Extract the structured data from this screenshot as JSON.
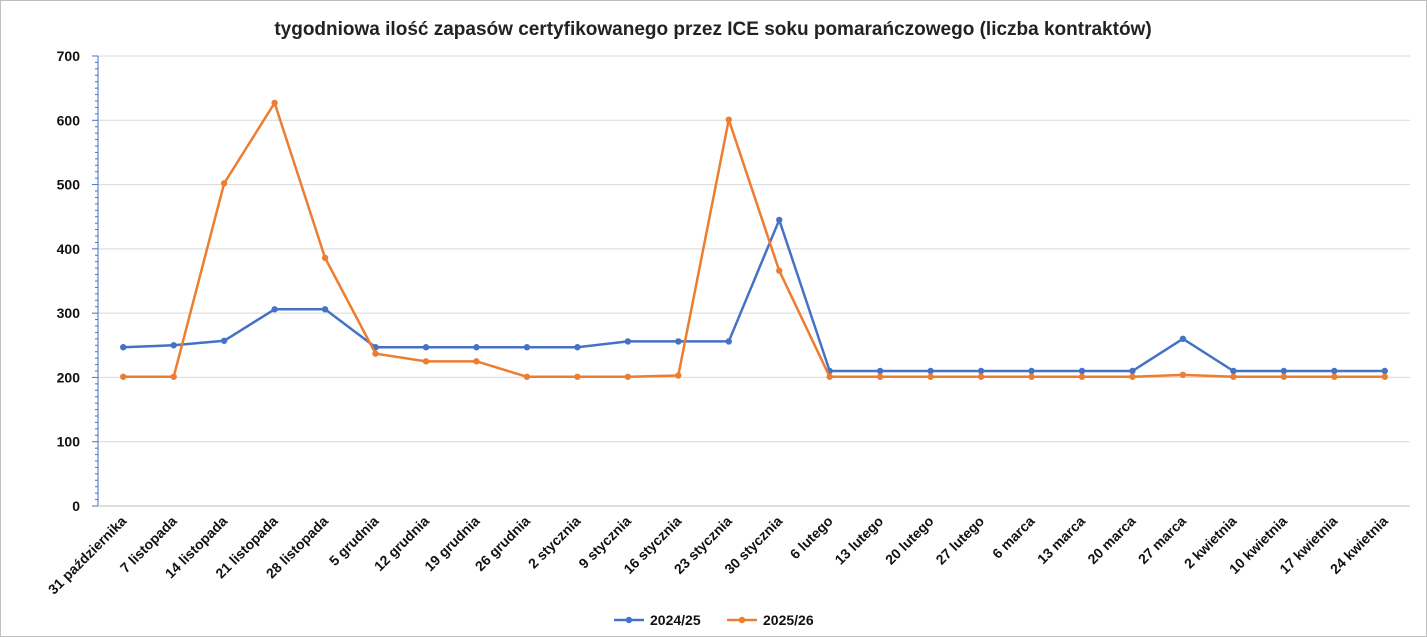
{
  "chart_data": {
    "type": "line",
    "title": "tygodniowa ilość zapasów certyfikowanego przez ICE soku pomarańczowego (liczba kontraktów)",
    "xlabel": "",
    "ylabel": "",
    "ylim": [
      0,
      700
    ],
    "yticks": [
      "0",
      "100",
      "200",
      "300",
      "400",
      "500",
      "600",
      "700"
    ],
    "grid": true,
    "legend_position": "bottom",
    "categories": [
      "31 października",
      "7 listopada",
      "14 listopada",
      "21 listopada",
      "28 listopada",
      "5 grudnia",
      "12 grudnia",
      "19 grudnia",
      "26 grudnia",
      "2 stycznia",
      "9 stycznia",
      "16 stycznia",
      "23 stycznia",
      "30 stycznia",
      "6 lutego",
      "13 lutego",
      "20 lutego",
      "27 lutego",
      "6 marca",
      "13 marca",
      "20 marca",
      "27 marca",
      "2 kwietnia",
      "10 kwietnia",
      "17 kwietnia",
      "24 kwietnia"
    ],
    "series": [
      {
        "name": "2024/25",
        "color": "#4472c4",
        "values": [
          247,
          250,
          257,
          306,
          306,
          247,
          247,
          247,
          247,
          247,
          256,
          256,
          256,
          445,
          210,
          210,
          210,
          210,
          210,
          210,
          210,
          260,
          210,
          210,
          210,
          210
        ]
      },
      {
        "name": "2025/26",
        "color": "#ed7d31",
        "values": [
          201,
          201,
          502,
          627,
          386,
          237,
          225,
          225,
          201,
          201,
          201,
          203,
          601,
          366,
          201,
          201,
          201,
          201,
          201,
          201,
          201,
          204,
          201,
          201,
          201,
          201
        ]
      }
    ]
  }
}
